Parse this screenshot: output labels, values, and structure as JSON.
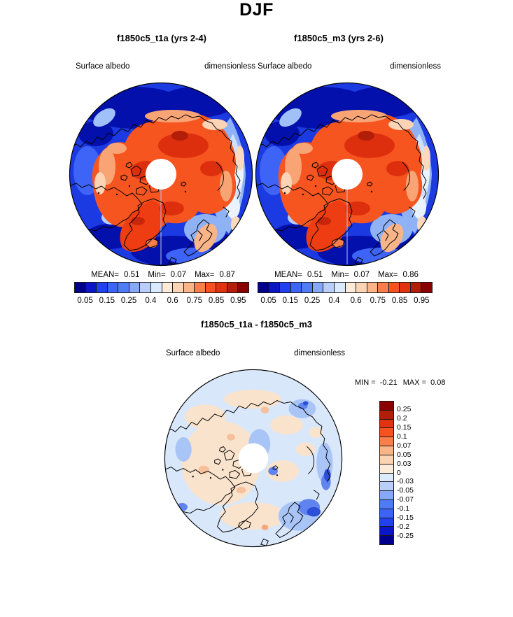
{
  "title": "DJF",
  "panels": [
    {
      "title": "f1850c5_t1a (yrs 2-4)",
      "variable": "Surface albedo",
      "units": "dimensionless",
      "stats": {
        "mean_label": "MEAN=",
        "mean": "0.51",
        "min_label": "Min=",
        "min": "0.07",
        "max_label": "Max=",
        "max": "0.87"
      },
      "colorbar_ticks": [
        "0.05",
        "0.15",
        "0.25",
        "0.4",
        "0.6",
        "0.75",
        "0.85",
        "0.95"
      ]
    },
    {
      "title": "f1850c5_m3 (yrs 2-6)",
      "variable": "Surface albedo",
      "units": "dimensionless",
      "stats": {
        "mean_label": "MEAN=",
        "mean": "0.51",
        "min_label": "Min=",
        "min": "0.07",
        "max_label": "Max=",
        "max": "0.86"
      },
      "colorbar_ticks": [
        "0.05",
        "0.15",
        "0.25",
        "0.4",
        "0.6",
        "0.75",
        "0.85",
        "0.95"
      ]
    }
  ],
  "difference": {
    "title": "f1850c5_t1a - f1850c5_m3",
    "variable": "Surface albedo",
    "units": "dimensionless",
    "min_label": "MIN =",
    "min": "-0.21",
    "max_label": "MAX =",
    "max": "0.08",
    "colorbar_labels": [
      "0.25",
      "0.2",
      "0.15",
      "0.1",
      "0.07",
      "0.05",
      "0.03",
      "0",
      "-0.03",
      "-0.05",
      "-0.07",
      "-0.1",
      "-0.15",
      "-0.2",
      "-0.25"
    ]
  },
  "palette": [
    "#00008B",
    "#0B16C8",
    "#2140EE",
    "#3C64F7",
    "#4E7CF5",
    "#86A8F8",
    "#BACEFA",
    "#DCEAFD",
    "#FDEBDA",
    "#FBD3B5",
    "#F9B488",
    "#F87E4C",
    "#F6511E",
    "#E23310",
    "#B21E08",
    "#8B0000"
  ],
  "chart_data": [
    {
      "type": "heatmap",
      "projection": "north polar stereographic",
      "season": "DJF",
      "title": "f1850c5_t1a (yrs 2-4)",
      "variable": "Surface albedo",
      "units": "dimensionless",
      "mean": 0.51,
      "min": 0.07,
      "max": 0.87,
      "contour_levels": [
        0.05,
        0.1,
        0.15,
        0.2,
        0.25,
        0.3,
        0.4,
        0.5,
        0.6,
        0.7,
        0.75,
        0.8,
        0.85,
        0.9,
        0.95
      ],
      "labeled_levels": [
        0.05,
        0.15,
        0.25,
        0.4,
        0.6,
        0.75,
        0.85,
        0.95
      ],
      "palette_direction": "dark blue (low) to dark red (high), 16 bins",
      "legend_position": "bottom",
      "notes": "High albedo (orange/red) over Arctic sea ice and snow-covered land; low albedo (blue) over open ocean; white circle = missing data at pole"
    },
    {
      "type": "heatmap",
      "projection": "north polar stereographic",
      "season": "DJF",
      "title": "f1850c5_m3 (yrs 2-6)",
      "variable": "Surface albedo",
      "units": "dimensionless",
      "mean": 0.51,
      "min": 0.07,
      "max": 0.86,
      "contour_levels": [
        0.05,
        0.1,
        0.15,
        0.2,
        0.25,
        0.3,
        0.4,
        0.5,
        0.6,
        0.7,
        0.75,
        0.8,
        0.85,
        0.9,
        0.95
      ],
      "labeled_levels": [
        0.05,
        0.15,
        0.25,
        0.4,
        0.6,
        0.75,
        0.85,
        0.95
      ],
      "palette_direction": "dark blue (low) to dark red (high), 16 bins",
      "legend_position": "bottom"
    },
    {
      "type": "heatmap",
      "projection": "north polar stereographic",
      "season": "DJF",
      "title": "f1850c5_t1a - f1850c5_m3",
      "variable": "Surface albedo",
      "units": "dimensionless",
      "min": -0.21,
      "max": 0.08,
      "contour_levels": [
        -0.25,
        -0.2,
        -0.15,
        -0.1,
        -0.07,
        -0.05,
        -0.03,
        0,
        0.03,
        0.05,
        0.07,
        0.1,
        0.15,
        0.2,
        0.25
      ],
      "palette_direction": "dark blue (negative) to dark red (positive), 16 bins",
      "legend_position": "right",
      "notes": "Difference mostly near zero (pale); strongest negative values (blue) near Scandinavia / Barents Sea"
    }
  ]
}
